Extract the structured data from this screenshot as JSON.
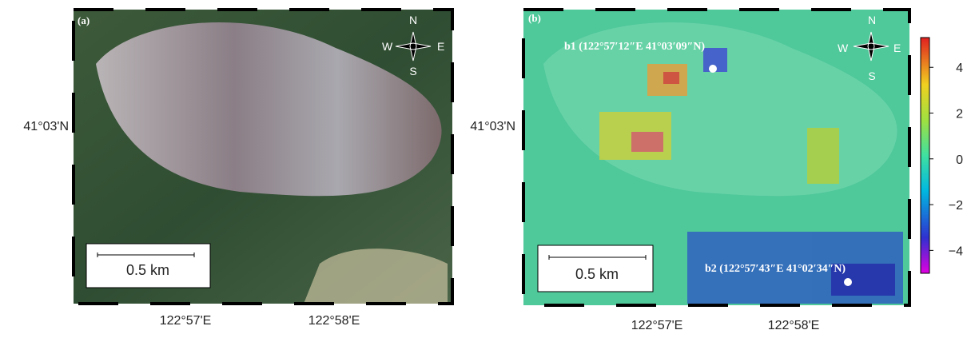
{
  "panels": [
    {
      "label": "(a)",
      "lat_label": "41°03'N",
      "lon_labels": [
        "122°57'E",
        "122°58'E"
      ],
      "scale_bar": "0.5 km",
      "compass": {
        "n": "N",
        "s": "S",
        "e": "E",
        "w": "W"
      }
    },
    {
      "label": "(b)",
      "lat_label": "41°03'N",
      "lon_labels": [
        "122°57'E",
        "122°58'E"
      ],
      "scale_bar": "0.5 km",
      "compass": {
        "n": "N",
        "s": "S",
        "e": "E",
        "w": "W"
      },
      "points": [
        {
          "label": "b1 (122°57′12″E  41°03′09″N)"
        },
        {
          "label": "b2 (122°57′43″E 41°02′34″N)"
        }
      ]
    }
  ],
  "colorbar": {
    "lim": [
      -5,
      5.3
    ],
    "ticks": [
      {
        "value": -4,
        "label": "−4"
      },
      {
        "value": -2,
        "label": "−2"
      },
      0,
      2,
      4
    ]
  }
}
